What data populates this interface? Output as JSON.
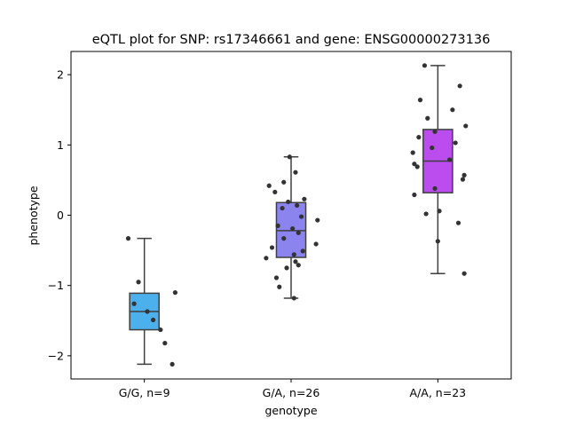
{
  "chart_data": {
    "type": "box",
    "title": "eQTL plot for SNP: rs17346661 and gene: ENSG00000273136",
    "xlabel": "genotype",
    "ylabel": "phenotype",
    "ylim": [
      -2.33,
      2.33
    ],
    "yticks": [
      -2,
      -1,
      0,
      1,
      2
    ],
    "ytick_labels": [
      "−2",
      "−1",
      "0",
      "1",
      "2"
    ],
    "grid": false,
    "categories": [
      "G/G, n=9",
      "G/A, n=26",
      "A/A, n=23"
    ],
    "colors": [
      "#4cb0ec",
      "#8b84ee",
      "#bb4cee"
    ],
    "boxes": [
      {
        "q1": -1.63,
        "median": -1.37,
        "q3": -1.11,
        "whisker_low": -2.12,
        "whisker_high": -0.33
      },
      {
        "q1": -0.6,
        "median": -0.22,
        "q3": 0.18,
        "whisker_low": -1.18,
        "whisker_high": 0.83
      },
      {
        "q1": 0.32,
        "median": 0.77,
        "q3": 1.22,
        "whisker_low": -0.83,
        "whisker_high": 2.13
      }
    ],
    "points": [
      [
        [
          -0.11,
          -0.33
        ],
        [
          -0.04,
          -0.95
        ],
        [
          0.21,
          -1.1
        ],
        [
          -0.07,
          -1.26
        ],
        [
          0.02,
          -1.37
        ],
        [
          0.06,
          -1.49
        ],
        [
          0.11,
          -1.63
        ],
        [
          0.14,
          -1.82
        ],
        [
          0.19,
          -2.12
        ]
      ],
      [
        [
          -0.01,
          0.83
        ],
        [
          -0.15,
          0.42
        ],
        [
          -0.11,
          0.33
        ],
        [
          -0.05,
          0.47
        ],
        [
          0.03,
          0.61
        ],
        [
          0.09,
          0.23
        ],
        [
          -0.06,
          0.1
        ],
        [
          0.07,
          -0.02
        ],
        [
          0.18,
          -0.07
        ],
        [
          -0.09,
          -0.15
        ],
        [
          0.01,
          -0.19
        ],
        [
          0.05,
          -0.25
        ],
        [
          -0.05,
          -0.33
        ],
        [
          0.17,
          -0.41
        ],
        [
          -0.13,
          -0.46
        ],
        [
          0.08,
          -0.51
        ],
        [
          -0.17,
          -0.61
        ],
        [
          0.02,
          -0.56
        ],
        [
          0.03,
          -0.66
        ],
        [
          0.05,
          -0.71
        ],
        [
          -0.03,
          -0.75
        ],
        [
          -0.1,
          -0.89
        ],
        [
          -0.08,
          -1.02
        ],
        [
          0.02,
          -1.18
        ],
        [
          -0.02,
          0.19
        ],
        [
          0.04,
          0.14
        ]
      ],
      [
        [
          -0.09,
          2.13
        ],
        [
          0.15,
          1.84
        ],
        [
          -0.12,
          1.64
        ],
        [
          0.1,
          1.5
        ],
        [
          -0.07,
          1.38
        ],
        [
          0.19,
          1.27
        ],
        [
          -0.02,
          1.19
        ],
        [
          -0.13,
          1.11
        ],
        [
          0.12,
          1.03
        ],
        [
          -0.04,
          0.96
        ],
        [
          -0.17,
          0.89
        ],
        [
          0.08,
          0.79
        ],
        [
          -0.16,
          0.73
        ],
        [
          -0.14,
          0.69
        ],
        [
          0.18,
          0.57
        ],
        [
          0.17,
          0.51
        ],
        [
          -0.02,
          0.38
        ],
        [
          -0.16,
          0.29
        ],
        [
          -0.08,
          0.02
        ],
        [
          0.01,
          0.06
        ],
        [
          0.14,
          -0.11
        ],
        [
          0.0,
          -0.37
        ],
        [
          0.18,
          -0.83
        ]
      ]
    ]
  }
}
